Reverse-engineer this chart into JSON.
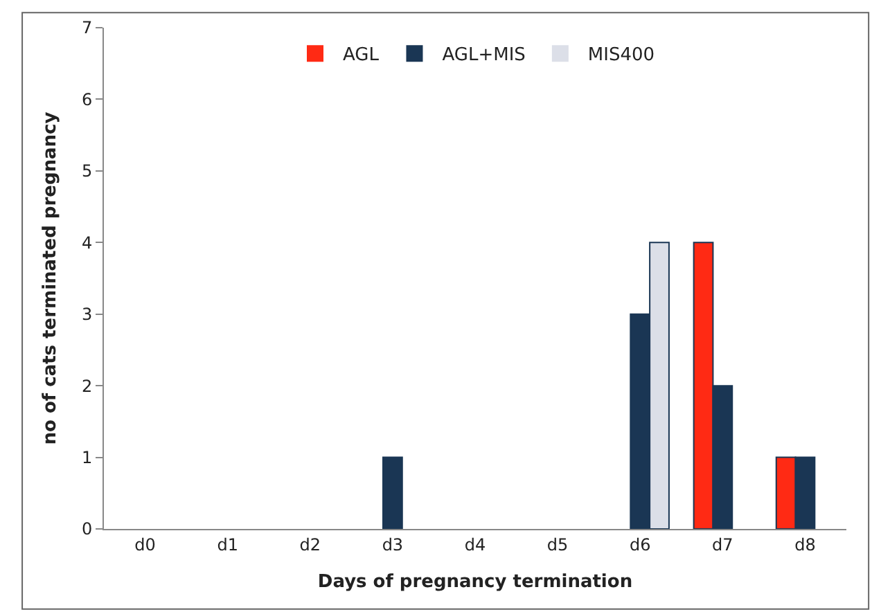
{
  "chart_data": {
    "type": "bar",
    "xlabel": "Days of pregnancy termination",
    "ylabel": "no of cats terminated pregnancy",
    "categories": [
      "d0",
      "d1",
      "d2",
      "d3",
      "d4",
      "d5",
      "d6",
      "d7",
      "d8"
    ],
    "series": [
      {
        "name": "AGL",
        "color": "#ff2a14",
        "values": [
          0,
          0,
          0,
          0,
          0,
          0,
          0,
          4,
          1
        ]
      },
      {
        "name": "AGL+MIS",
        "color": "#1a3654",
        "values": [
          0,
          0,
          0,
          1,
          0,
          0,
          3,
          2,
          1
        ]
      },
      {
        "name": "MIS400",
        "color": "#dcdfe8",
        "values": [
          0,
          0,
          0,
          0,
          0,
          0,
          4,
          0,
          0
        ]
      }
    ],
    "ylim": [
      0,
      7
    ],
    "yticks": [
      0,
      1,
      2,
      3,
      4,
      5,
      6,
      7
    ],
    "legend": "top"
  }
}
